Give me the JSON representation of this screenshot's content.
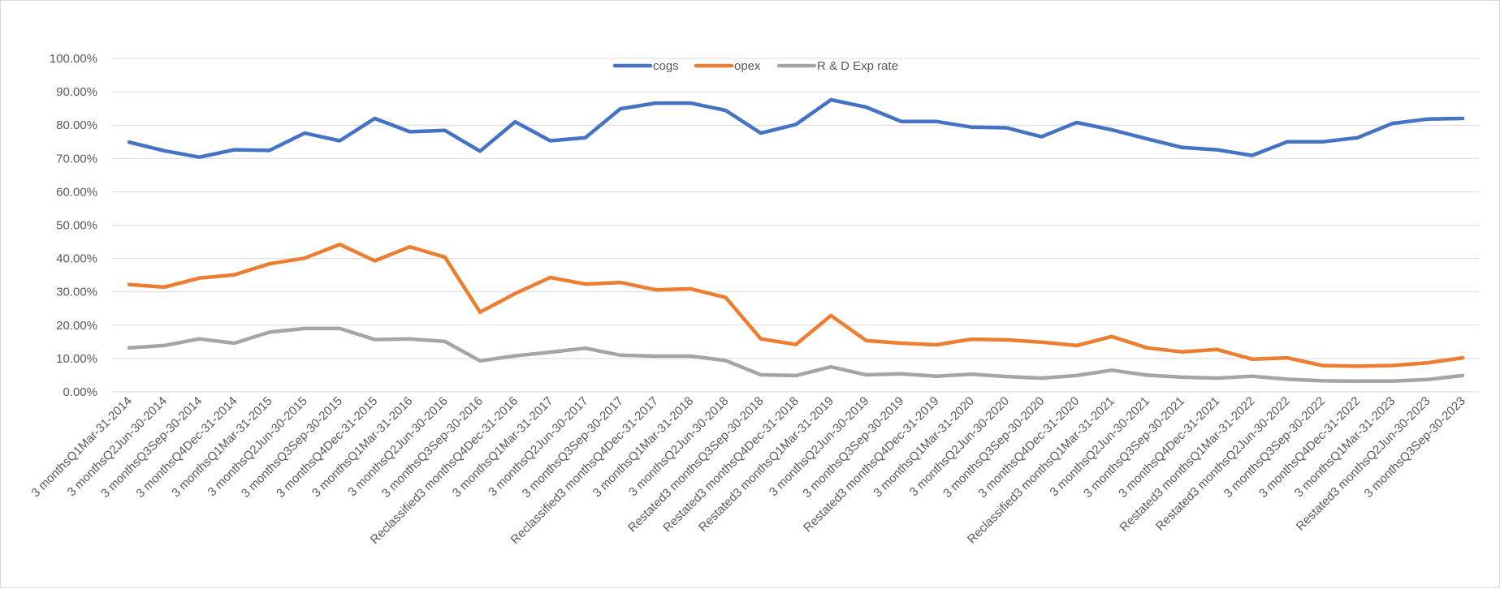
{
  "chart_data": {
    "type": "line",
    "title": "",
    "xlabel": "",
    "ylabel": "",
    "ylim": [
      0,
      100
    ],
    "y_ticks": [
      "0.00%",
      "10.00%",
      "20.00%",
      "30.00%",
      "40.00%",
      "50.00%",
      "60.00%",
      "70.00%",
      "80.00%",
      "90.00%",
      "100.00%"
    ],
    "grid": true,
    "legend_position": "top-center",
    "categories": [
      "3 monthsQ1Mar-31-2014",
      "3 monthsQ2Jun-30-2014",
      "3 monthsQ3Sep-30-2014",
      "3 monthsQ4Dec-31-2014",
      "3 monthsQ1Mar-31-2015",
      "3 monthsQ2Jun-30-2015",
      "3 monthsQ3Sep-30-2015",
      "3 monthsQ4Dec-31-2015",
      "3 monthsQ1Mar-31-2016",
      "3 monthsQ2Jun-30-2016",
      "3 monthsQ3Sep-30-2016",
      "Reclassified3 monthsQ4Dec-31-2016",
      "3 monthsQ1Mar-31-2017",
      "3 monthsQ2Jun-30-2017",
      "3 monthsQ3Sep-30-2017",
      "Reclassified3 monthsQ4Dec-31-2017",
      "3 monthsQ1Mar-31-2018",
      "3 monthsQ2Jun-30-2018",
      "Restated3 monthsQ3Sep-30-2018",
      "Restated3 monthsQ4Dec-31-2018",
      "Restated3 monthsQ1Mar-31-2019",
      "3 monthsQ2Jun-30-2019",
      "3 monthsQ3Sep-30-2019",
      "Restated3 monthsQ4Dec-31-2019",
      "3 monthsQ1Mar-31-2020",
      "3 monthsQ2Jun-30-2020",
      "3 monthsQ3Sep-30-2020",
      "3 monthsQ4Dec-31-2020",
      "Reclassified3 monthsQ1Mar-31-2021",
      "3 monthsQ2Jun-30-2021",
      "3 monthsQ3Sep-30-2021",
      "3 monthsQ4Dec-31-2021",
      "Restated3 monthsQ1Mar-31-2022",
      "Restated3 monthsQ2Jun-30-2022",
      "3 monthsQ3Sep-30-2022",
      "3 monthsQ4Dec-31-2022",
      "3 monthsQ1Mar-31-2023",
      "Restated3 monthsQ2Jun-30-2023",
      "3 monthsQ3Sep-30-2023"
    ],
    "series": [
      {
        "name": "cogs",
        "color": "#4472c4",
        "values": [
          74.9,
          72.3,
          70.4,
          72.6,
          72.4,
          77.6,
          75.3,
          82.0,
          78.0,
          78.4,
          72.2,
          81.0,
          75.3,
          76.2,
          84.9,
          86.6,
          86.6,
          84.4,
          77.6,
          80.2,
          87.6,
          85.4,
          81.1,
          81.1,
          79.4,
          79.2,
          76.5,
          80.8,
          78.6,
          75.9,
          73.3,
          72.6,
          70.9,
          75.0,
          75.0,
          76.2,
          80.5,
          81.8,
          82.0
        ]
      },
      {
        "name": "opex",
        "color": "#ed7d31",
        "values": [
          32.2,
          31.4,
          34.1,
          35.1,
          38.4,
          40.1,
          44.2,
          39.3,
          43.5,
          40.4,
          23.9,
          29.5,
          34.3,
          32.3,
          32.8,
          30.6,
          30.9,
          28.3,
          15.9,
          14.2,
          22.9,
          15.4,
          14.6,
          14.1,
          15.8,
          15.6,
          14.9,
          13.9,
          16.6,
          13.2,
          12.0,
          12.7,
          9.8,
          10.2,
          7.9,
          7.7,
          7.9,
          8.7,
          10.2
        ]
      },
      {
        "name": "R & D Exp rate",
        "color": "#a5a5a5",
        "values": [
          13.2,
          13.9,
          15.9,
          14.6,
          17.9,
          19.0,
          19.0,
          15.7,
          15.9,
          15.1,
          9.3,
          10.8,
          11.9,
          13.1,
          11.0,
          10.7,
          10.7,
          9.4,
          5.1,
          4.9,
          7.5,
          5.1,
          5.4,
          4.7,
          5.3,
          4.6,
          4.1,
          4.9,
          6.5,
          5.0,
          4.4,
          4.1,
          4.7,
          3.8,
          3.3,
          3.2,
          3.2,
          3.7,
          4.9
        ]
      }
    ]
  }
}
